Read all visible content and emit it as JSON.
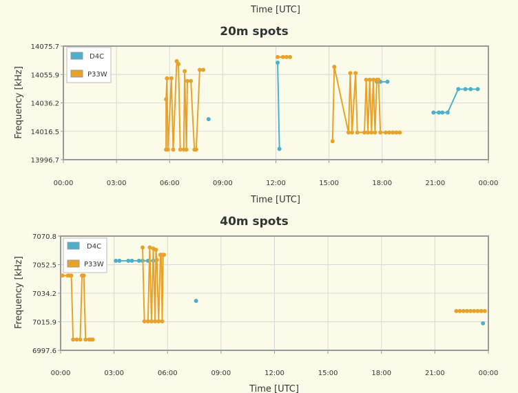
{
  "top_axis_label": "Time [UTC]",
  "colors": {
    "D4C": "#4bb0c8",
    "P33W": "#e8a22a",
    "grid": "#d8d8d8",
    "plot_bg": "#fbfbea",
    "border": "#999999"
  },
  "chart_data": [
    {
      "type": "line",
      "title": "20m spots",
      "xlabel": "Time [UTC]",
      "ylabel": "Frequency [kHz]",
      "xlim": [
        0,
        24
      ],
      "ylim": [
        13996.7,
        14075.7
      ],
      "xticks": [
        "00:00",
        "03:00",
        "06:00",
        "09:00",
        "12:00",
        "15:00",
        "18:00",
        "21:00",
        "00:00"
      ],
      "yticks": [
        "14075.7",
        "14055.9",
        "14036.2",
        "14016.5",
        "13996.7"
      ],
      "grid": true,
      "legend": "top-left",
      "series": [
        {
          "name": "D4C",
          "segments": [
            [
              [
                8.2,
                14024.9
              ]
            ],
            [
              [
                12.1,
                14064.2
              ],
              [
                12.2,
                14004.2
              ]
            ],
            [
              [
                17.7,
                14050.9
              ],
              [
                17.9,
                14050.9
              ],
              [
                18.3,
                14050.9
              ]
            ],
            [
              [
                20.9,
                14029.5
              ],
              [
                21.2,
                14029.5
              ],
              [
                21.4,
                14029.5
              ],
              [
                21.7,
                14029.5
              ],
              [
                22.3,
                14045.8
              ],
              [
                22.7,
                14045.8
              ],
              [
                23.0,
                14045.8
              ],
              [
                23.4,
                14045.8
              ]
            ]
          ]
        },
        {
          "name": "P33W",
          "segments": [
            [
              [
                5.8,
                14003.7
              ],
              [
                5.8,
                14038.7
              ],
              [
                5.85,
                14053.3
              ],
              [
                5.9,
                14003.7
              ],
              [
                6.1,
                14053.3
              ],
              [
                6.2,
                14003.7
              ],
              [
                6.4,
                14065.2
              ],
              [
                6.5,
                14063.2
              ],
              [
                6.6,
                14003.7
              ],
              [
                6.8,
                14003.7
              ],
              [
                6.85,
                14058.3
              ],
              [
                6.95,
                14003.7
              ],
              [
                7.0,
                14051.4
              ],
              [
                7.2,
                14051.4
              ],
              [
                7.4,
                14003.7
              ],
              [
                7.5,
                14003.7
              ],
              [
                7.7,
                14059.2
              ],
              [
                7.9,
                14059.2
              ]
            ],
            [
              [
                12.1,
                14068.1
              ],
              [
                12.4,
                14068.1
              ],
              [
                12.6,
                14068.1
              ],
              [
                12.8,
                14068.1
              ]
            ],
            [
              [
                15.2,
                14009.5
              ],
              [
                15.3,
                14061.3
              ],
              [
                16.1,
                14015.6
              ],
              [
                16.2,
                14056.9
              ],
              [
                16.3,
                14015.6
              ],
              [
                16.5,
                14056.9
              ],
              [
                16.6,
                14015.6
              ],
              [
                17.0,
                14015.6
              ],
              [
                17.1,
                14052.3
              ],
              [
                17.2,
                14015.6
              ],
              [
                17.3,
                14052.3
              ],
              [
                17.4,
                14015.6
              ],
              [
                17.5,
                14052.3
              ],
              [
                17.6,
                14015.6
              ],
              [
                17.7,
                14052.3
              ],
              [
                17.8,
                14052.3
              ],
              [
                17.9,
                14015.6
              ],
              [
                18.2,
                14015.6
              ],
              [
                18.4,
                14015.6
              ],
              [
                18.6,
                14015.6
              ],
              [
                18.8,
                14015.6
              ],
              [
                19.0,
                14015.6
              ]
            ]
          ]
        }
      ]
    },
    {
      "type": "line",
      "title": "40m spots",
      "xlabel": "Time [UTC]",
      "ylabel": "Frequency [kHz]",
      "xlim": [
        0,
        24
      ],
      "ylim": [
        6997.6,
        7070.8
      ],
      "xticks": [
        "00:00",
        "03:00",
        "06:00",
        "09:00",
        "12:00",
        "15:00",
        "18:00",
        "21:00",
        "00:00"
      ],
      "yticks": [
        "7070.8",
        "7052.5",
        "7034.2",
        "7015.9",
        "6997.6"
      ],
      "grid": true,
      "legend": "top-left",
      "series": [
        {
          "name": "D4C",
          "segments": [
            [
              [
                3.1,
                7055.0
              ],
              [
                3.3,
                7055.0
              ],
              [
                3.8,
                7055.0
              ],
              [
                4.0,
                7055.0
              ],
              [
                4.4,
                7055.0
              ],
              [
                4.6,
                7055.0
              ],
              [
                4.9,
                7055.0
              ],
              [
                5.2,
                7055.0
              ]
            ],
            [
              [
                7.6,
                7029.3
              ]
            ],
            [
              [
                23.7,
                7014.9
              ]
            ]
          ]
        },
        {
          "name": "P33W",
          "segments": [
            [
              [
                0.1,
                7045.5
              ],
              [
                0.4,
                7045.5
              ],
              [
                0.5,
                7045.5
              ],
              [
                0.6,
                7045.5
              ],
              [
                0.7,
                7004.5
              ],
              [
                0.9,
                7004.5
              ],
              [
                1.1,
                7004.5
              ],
              [
                1.2,
                7045.5
              ],
              [
                1.3,
                7045.5
              ],
              [
                1.4,
                7004.5
              ],
              [
                1.6,
                7004.5
              ],
              [
                1.7,
                7004.5
              ],
              [
                1.8,
                7004.5
              ]
            ],
            [
              [
                4.6,
                7063.5
              ],
              [
                4.7,
                7016.2
              ],
              [
                4.9,
                7016.2
              ],
              [
                5.0,
                7063.5
              ],
              [
                5.1,
                7016.2
              ],
              [
                5.2,
                7062.8
              ],
              [
                5.3,
                7016.2
              ],
              [
                5.35,
                7062.0
              ],
              [
                5.4,
                7055.5
              ],
              [
                5.5,
                7016.2
              ],
              [
                5.6,
                7058.8
              ],
              [
                5.65,
                7058.8
              ],
              [
                5.7,
                7016.2
              ],
              [
                5.75,
                7058.8
              ],
              [
                5.8,
                7058.8
              ]
            ],
            [
              [
                22.2,
                7022.8
              ],
              [
                22.4,
                7022.8
              ],
              [
                22.6,
                7022.8
              ],
              [
                22.8,
                7022.8
              ],
              [
                23.0,
                7022.8
              ],
              [
                23.2,
                7022.8
              ],
              [
                23.4,
                7022.8
              ],
              [
                23.6,
                7022.8
              ],
              [
                23.8,
                7022.8
              ]
            ]
          ]
        }
      ]
    }
  ]
}
